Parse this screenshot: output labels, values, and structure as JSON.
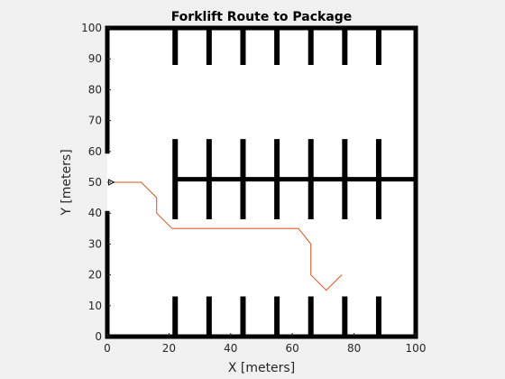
{
  "chart_data": {
    "type": "line",
    "title": "Forklift Route to Package",
    "xlabel": "X [meters]",
    "ylabel": "Y [meters]",
    "xlim": [
      0,
      100
    ],
    "ylim": [
      0,
      100
    ],
    "xticks": [
      0,
      20,
      40,
      60,
      80,
      100
    ],
    "yticks": [
      0,
      10,
      20,
      30,
      40,
      50,
      60,
      70,
      80,
      90,
      100
    ],
    "grid": false,
    "route_color": "#d95319",
    "obstacle_color": "#000000",
    "series": [
      {
        "x": [
          1,
          11,
          12,
          16,
          16,
          21,
          62,
          66,
          66,
          71,
          76
        ],
        "y": [
          50,
          50,
          49,
          45,
          40,
          35,
          35,
          30,
          20,
          15,
          20
        ]
      }
    ],
    "start_pose": {
      "x": 1,
      "y": 50,
      "heading_deg": 0
    },
    "obstacles": {
      "boundary": [
        {
          "x1": 0,
          "y1": 0,
          "x2": 0,
          "y2": 40
        },
        {
          "x1": 0,
          "y1": 60,
          "x2": 0,
          "y2": 100
        },
        {
          "x1": 0,
          "y1": 100,
          "x2": 100,
          "y2": 100
        },
        {
          "x1": 100,
          "y1": 100,
          "x2": 100,
          "y2": 0
        },
        {
          "x1": 100,
          "y1": 0,
          "x2": 0,
          "y2": 0
        }
      ],
      "center_bar": {
        "x1": 22,
        "x2": 100,
        "y": 51
      },
      "shelf_x": [
        22,
        33,
        44,
        55,
        66,
        77,
        88
      ],
      "shelf_rows": [
        {
          "y1": 88,
          "y2": 100
        },
        {
          "y1": 38,
          "y2": 64
        },
        {
          "y1": 0,
          "y2": 13
        }
      ]
    }
  }
}
